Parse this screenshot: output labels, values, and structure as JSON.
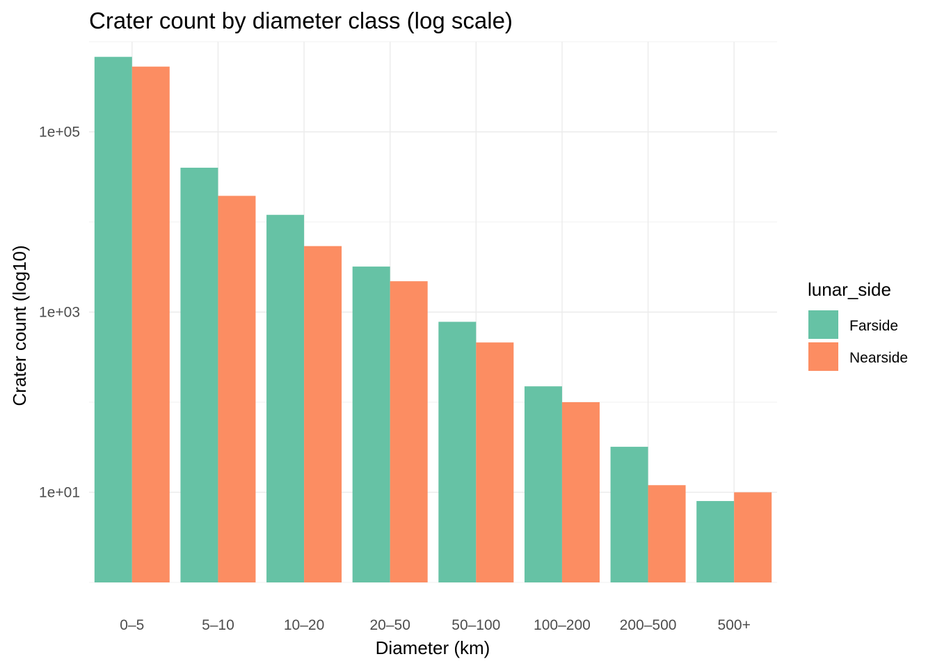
{
  "chart_data": {
    "type": "bar",
    "title": "Crater count by diameter class (log scale)",
    "xlabel": "Diameter (km)",
    "ylabel": "Crater count (log10)",
    "y_scale": "log10",
    "ylim": [
      1,
      1000000
    ],
    "y_ticks": [
      {
        "value": 10,
        "label": "1e+01"
      },
      {
        "value": 1000,
        "label": "1e+03"
      },
      {
        "value": 100000,
        "label": "1e+05"
      }
    ],
    "y_minor_ticks": [
      1,
      100,
      10000,
      1000000
    ],
    "grid": true,
    "legend_title": "lunar_side",
    "legend_position": "right",
    "categories": [
      "0–5",
      "5–10",
      "10–20",
      "20–50",
      "50–100",
      "100–200",
      "200–500",
      "500+"
    ],
    "series": [
      {
        "name": "Farside",
        "color": "#66c2a5",
        "values": [
          680000,
          40000,
          12000,
          3200,
          780,
          150,
          32,
          8
        ]
      },
      {
        "name": "Nearside",
        "color": "#fc8d62",
        "values": [
          530000,
          19500,
          5400,
          2200,
          460,
          100,
          12,
          10
        ]
      }
    ]
  }
}
